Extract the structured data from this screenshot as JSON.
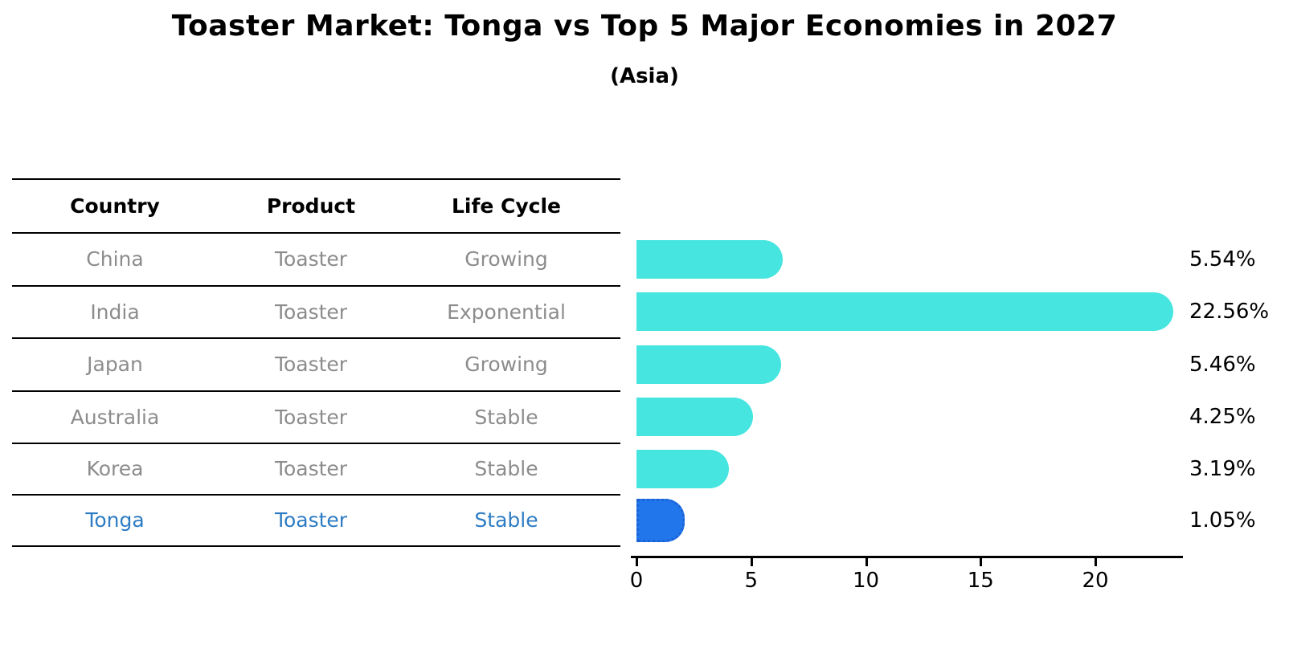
{
  "title": "Toaster Market: Tonga vs Top 5 Major Economies in 2027",
  "subtitle": "(Asia)",
  "table": {
    "headers": [
      "Country",
      "Product",
      "Life Cycle"
    ],
    "rows": [
      {
        "country": "China",
        "product": "Toaster",
        "life_cycle": "Growing",
        "highlight": false
      },
      {
        "country": "India",
        "product": "Toaster",
        "life_cycle": "Exponential",
        "highlight": false
      },
      {
        "country": "Japan",
        "product": "Toaster",
        "life_cycle": "Growing",
        "highlight": false
      },
      {
        "country": "Australia",
        "product": "Toaster",
        "life_cycle": "Stable",
        "highlight": false
      },
      {
        "country": "Korea",
        "product": "Toaster",
        "life_cycle": "Stable",
        "highlight": false
      },
      {
        "country": "Tonga",
        "product": "Toaster",
        "life_cycle": "Stable",
        "highlight": true
      }
    ]
  },
  "chart_data": {
    "type": "bar",
    "orientation": "horizontal",
    "categories": [
      "China",
      "India",
      "Japan",
      "Australia",
      "Korea",
      "Tonga"
    ],
    "values": [
      5.54,
      22.56,
      5.46,
      4.25,
      3.19,
      1.05
    ],
    "value_labels": [
      "5.54%",
      "22.56%",
      "5.46%",
      "4.25%",
      "3.19%",
      "1.05%"
    ],
    "highlight_index": 5,
    "x_ticks": [
      0,
      5,
      10,
      15,
      20
    ],
    "xlim": [
      0,
      23.8
    ],
    "grid": false,
    "legend": "none",
    "title": "Toaster Market: Tonga vs Top 5 Major Economies in 2027 (Asia)",
    "xlabel": "",
    "ylabel": ""
  },
  "colors": {
    "bar": "#46E5E0",
    "highlight_bar": "#2176EB",
    "highlight_bar_edge": "#1b62d6",
    "highlight_text": "#2e7cc3",
    "cell_text": "#8c8c8c",
    "axis": "#000000"
  }
}
